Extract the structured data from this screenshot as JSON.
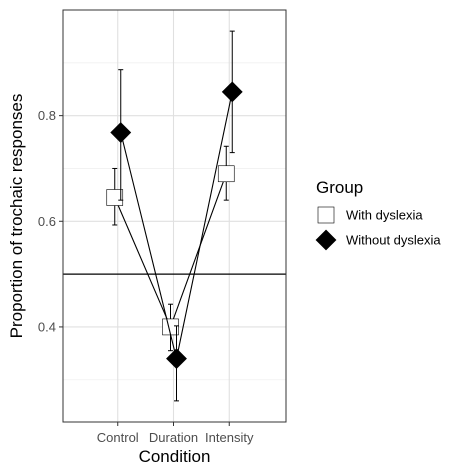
{
  "chart_data": {
    "type": "line",
    "xlabel": "Condition",
    "ylabel": "Proportion of trochaic responses",
    "categories": [
      "Control",
      "Duration",
      "Intensity"
    ],
    "ylim": [
      0.22,
      1.0
    ],
    "yticks": [
      0.4,
      0.6,
      0.8
    ],
    "ytick_labels": [
      "0.4",
      "0.6",
      "0.8"
    ],
    "reference_line": 0.5,
    "grid": true,
    "legend_position": "right",
    "legend_title": "Group",
    "series": [
      {
        "name": "With dyslexia",
        "marker": "square",
        "fill": "#ffffff",
        "values": [
          0.645,
          0.4,
          0.69
        ],
        "error_low": [
          0.593,
          0.355,
          0.64
        ],
        "error_high": [
          0.7,
          0.443,
          0.742
        ]
      },
      {
        "name": "Without dyslexia",
        "marker": "diamond",
        "fill": "#000000",
        "values": [
          0.768,
          0.34,
          0.845
        ],
        "error_low": [
          0.64,
          0.26,
          0.73
        ],
        "error_high": [
          0.887,
          0.402,
          0.96
        ]
      }
    ]
  }
}
